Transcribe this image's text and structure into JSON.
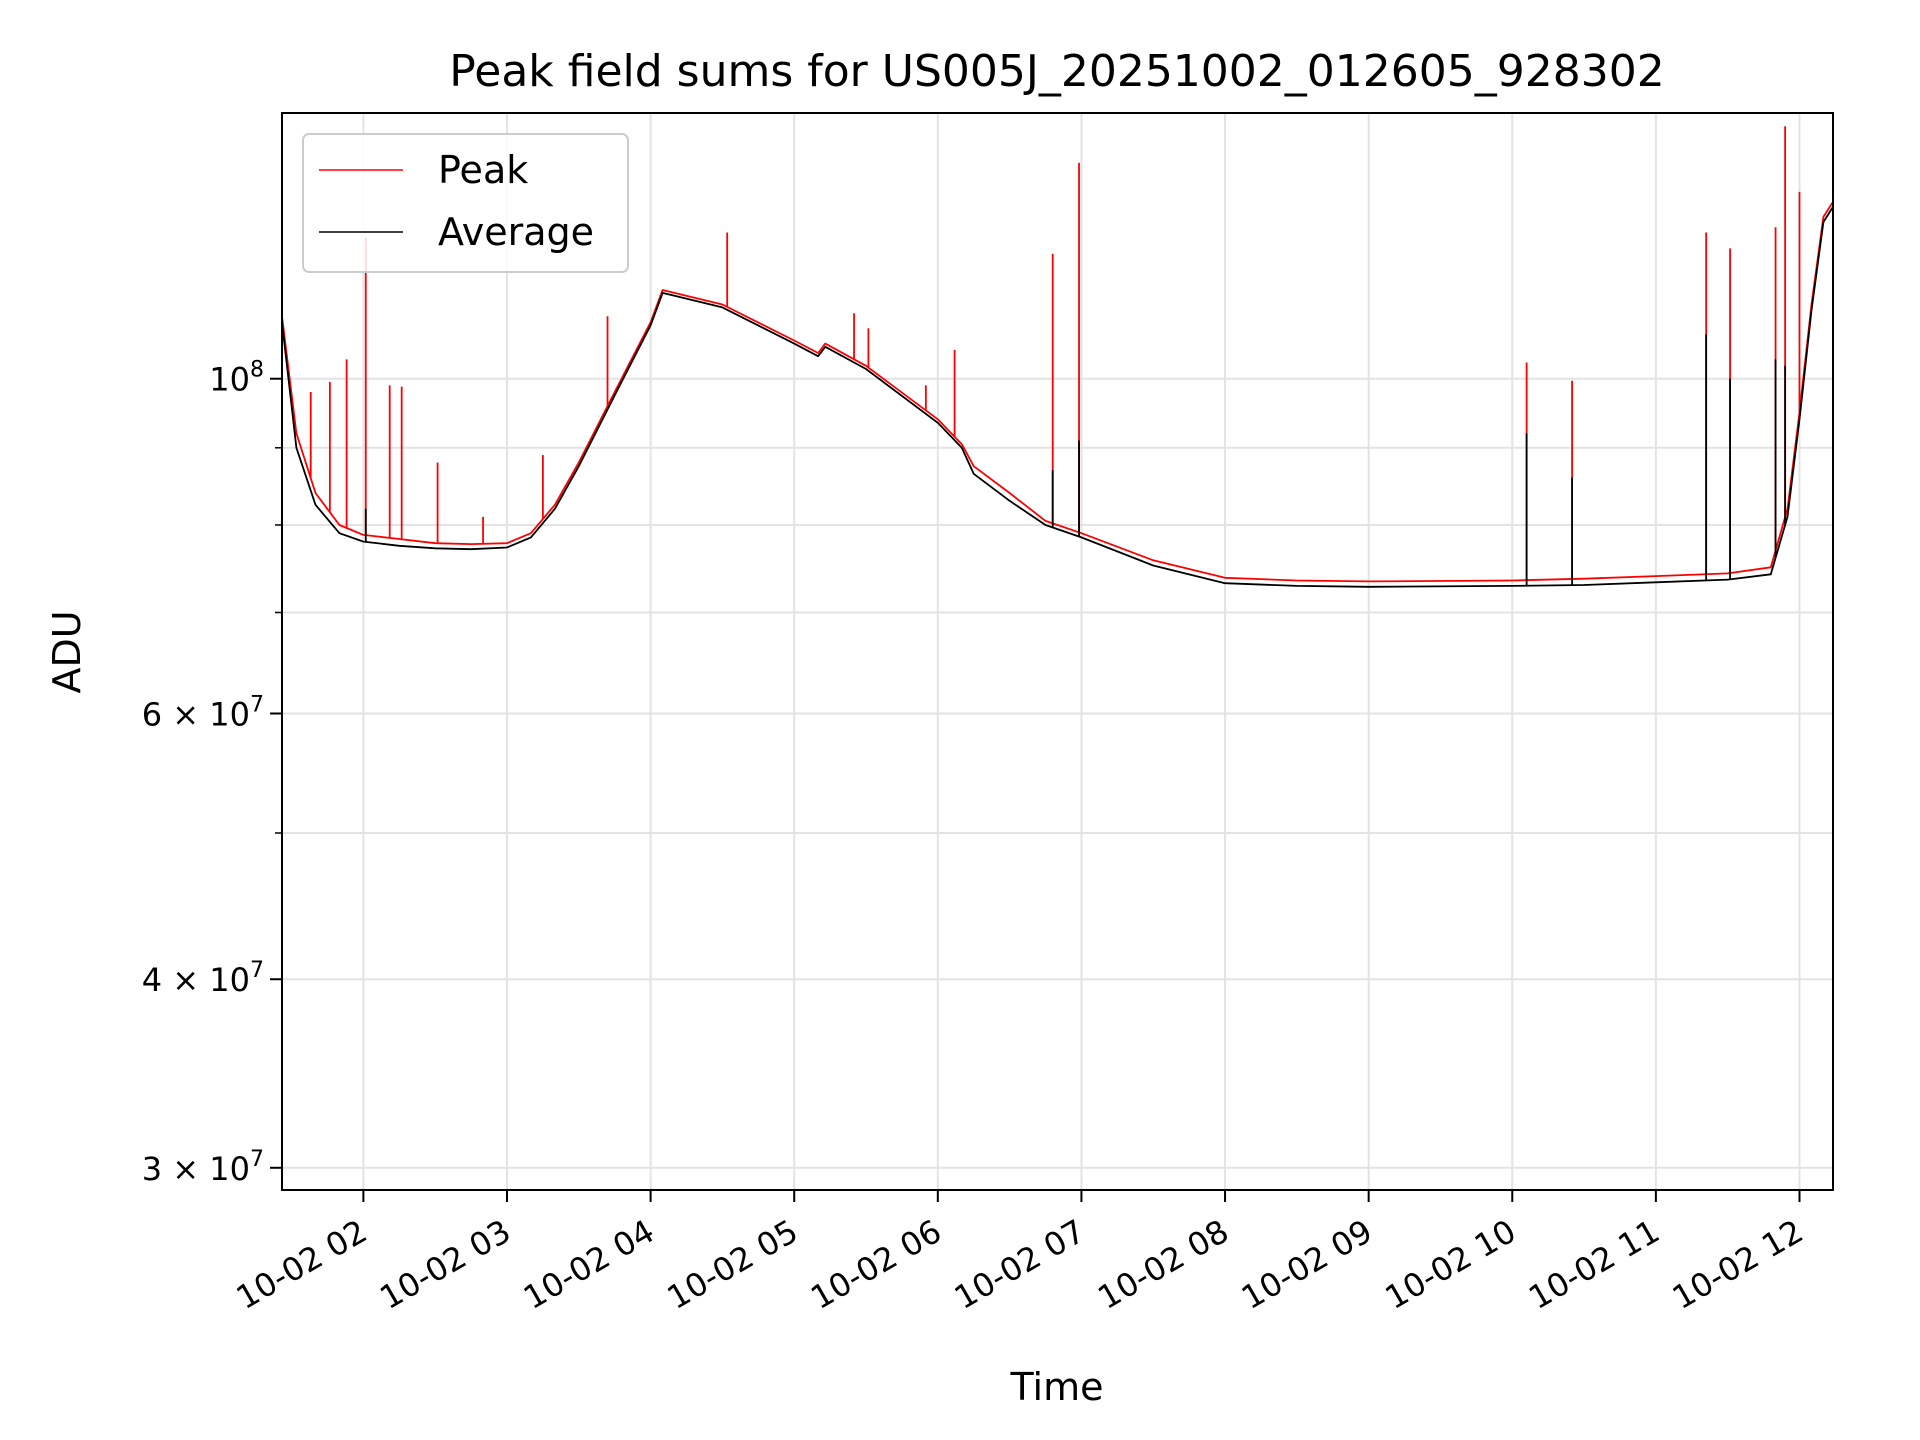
{
  "chart_data": {
    "type": "line",
    "title": "Peak field sums for US005J_20251002_012605_928302",
    "xlabel": "Time",
    "ylabel": "ADU",
    "x_axis_kind": "datetime",
    "x_range": [
      "2025-10-02 01:26",
      "2025-10-02 12:14"
    ],
    "y_scale": "log",
    "ylim": [
      29000000,
      150000000
    ],
    "grid": true,
    "legend_position": "top-left",
    "x_ticks": [
      {
        "value": "2025-10-02 02:00",
        "label": "10-02 02"
      },
      {
        "value": "2025-10-02 03:00",
        "label": "10-02 03"
      },
      {
        "value": "2025-10-02 04:00",
        "label": "10-02 04"
      },
      {
        "value": "2025-10-02 05:00",
        "label": "10-02 05"
      },
      {
        "value": "2025-10-02 06:00",
        "label": "10-02 06"
      },
      {
        "value": "2025-10-02 07:00",
        "label": "10-02 07"
      },
      {
        "value": "2025-10-02 08:00",
        "label": "10-02 08"
      },
      {
        "value": "2025-10-02 09:00",
        "label": "10-02 09"
      },
      {
        "value": "2025-10-02 10:00",
        "label": "10-02 10"
      },
      {
        "value": "2025-10-02 11:00",
        "label": "10-02 11"
      },
      {
        "value": "2025-10-02 12:00",
        "label": "10-02 12"
      }
    ],
    "y_major_ticks": [
      {
        "value": 100000000,
        "label_base": "10",
        "label_exp": "8"
      },
      {
        "value": 60000000,
        "label_base": "6 × 10",
        "label_exp": "7"
      },
      {
        "value": 40000000,
        "label_base": "4 × 10",
        "label_exp": "7"
      },
      {
        "value": 30000000,
        "label_base": "3 × 10",
        "label_exp": "7"
      }
    ],
    "y_minor_ticks": [
      50000000,
      70000000,
      80000000,
      90000000
    ],
    "series": [
      {
        "name": "Peak",
        "color": "#ff0000",
        "points": [
          [
            "2025-10-02 01:26",
            110000000
          ],
          [
            "2025-10-02 01:32",
            92000000
          ],
          [
            "2025-10-02 01:40",
            84000000
          ],
          [
            "2025-10-02 01:50",
            80000000
          ],
          [
            "2025-10-02 02:00",
            78800000
          ],
          [
            "2025-10-02 02:15",
            78300000
          ],
          [
            "2025-10-02 02:30",
            77800000
          ],
          [
            "2025-10-02 02:45",
            77700000
          ],
          [
            "2025-10-02 03:00",
            77800000
          ],
          [
            "2025-10-02 03:10",
            79000000
          ],
          [
            "2025-10-02 03:20",
            82500000
          ],
          [
            "2025-10-02 03:30",
            88000000
          ],
          [
            "2025-10-02 03:45",
            98000000
          ],
          [
            "2025-10-02 04:00",
            109000000
          ],
          [
            "2025-10-02 04:05",
            114500000
          ],
          [
            "2025-10-02 04:30",
            112000000
          ],
          [
            "2025-10-02 05:00",
            106000000
          ],
          [
            "2025-10-02 05:10",
            104000000
          ],
          [
            "2025-10-02 05:13",
            105500000
          ],
          [
            "2025-10-02 05:30",
            102000000
          ],
          [
            "2025-10-02 06:00",
            94000000
          ],
          [
            "2025-10-02 06:10",
            90500000
          ],
          [
            "2025-10-02 06:15",
            87500000
          ],
          [
            "2025-10-02 06:30",
            84000000
          ],
          [
            "2025-10-02 06:45",
            80500000
          ],
          [
            "2025-10-02 07:00",
            79000000
          ],
          [
            "2025-10-02 07:30",
            75800000
          ],
          [
            "2025-10-02 08:00",
            73800000
          ],
          [
            "2025-10-02 08:30",
            73500000
          ],
          [
            "2025-10-02 09:00",
            73400000
          ],
          [
            "2025-10-02 10:00",
            73500000
          ],
          [
            "2025-10-02 10:30",
            73700000
          ],
          [
            "2025-10-02 11:00",
            74000000
          ],
          [
            "2025-10-02 11:30",
            74300000
          ],
          [
            "2025-10-02 11:48",
            75000000
          ],
          [
            "2025-10-02 11:55",
            82000000
          ],
          [
            "2025-10-02 12:00",
            95000000
          ],
          [
            "2025-10-02 12:05",
            112000000
          ],
          [
            "2025-10-02 12:10",
            128000000
          ],
          [
            "2025-10-02 12:14",
            131000000
          ]
        ],
        "spikes": [
          [
            "2025-10-02 01:38",
            98000000
          ],
          [
            "2025-10-02 01:46",
            99500000
          ],
          [
            "2025-10-02 01:53",
            103000000
          ],
          [
            "2025-10-02 02:01",
            124000000
          ],
          [
            "2025-10-02 02:11",
            99000000
          ],
          [
            "2025-10-02 02:16",
            98800000
          ],
          [
            "2025-10-02 02:31",
            88000000
          ],
          [
            "2025-10-02 02:50",
            81000000
          ],
          [
            "2025-10-02 03:15",
            89000000
          ],
          [
            "2025-10-02 03:42",
            110000000
          ],
          [
            "2025-10-02 04:32",
            125000000
          ],
          [
            "2025-10-02 05:25",
            110500000
          ],
          [
            "2025-10-02 05:31",
            108000000
          ],
          [
            "2025-10-02 05:55",
            99000000
          ],
          [
            "2025-10-02 06:07",
            104500000
          ],
          [
            "2025-10-02 06:48",
            121000000
          ],
          [
            "2025-10-02 06:59",
            139000000
          ],
          [
            "2025-10-02 10:06",
            102500000
          ],
          [
            "2025-10-02 10:25",
            99700000
          ],
          [
            "2025-10-02 11:21",
            125000000
          ],
          [
            "2025-10-02 11:31",
            122000000
          ],
          [
            "2025-10-02 11:50",
            126000000
          ],
          [
            "2025-10-02 11:54",
            147000000
          ],
          [
            "2025-10-02 12:00",
            133000000
          ],
          [
            "2025-10-02 12:14",
            133000000
          ]
        ]
      },
      {
        "name": "Average",
        "color": "#000000",
        "points": [
          [
            "2025-10-02 01:26",
            109000000
          ],
          [
            "2025-10-02 01:32",
            90000000
          ],
          [
            "2025-10-02 01:40",
            82500000
          ],
          [
            "2025-10-02 01:50",
            79000000
          ],
          [
            "2025-10-02 02:00",
            78000000
          ],
          [
            "2025-10-02 02:15",
            77500000
          ],
          [
            "2025-10-02 02:30",
            77200000
          ],
          [
            "2025-10-02 02:45",
            77100000
          ],
          [
            "2025-10-02 03:00",
            77300000
          ],
          [
            "2025-10-02 03:10",
            78500000
          ],
          [
            "2025-10-02 03:20",
            82000000
          ],
          [
            "2025-10-02 03:30",
            87500000
          ],
          [
            "2025-10-02 03:45",
            97500000
          ],
          [
            "2025-10-02 04:00",
            108500000
          ],
          [
            "2025-10-02 04:05",
            114000000
          ],
          [
            "2025-10-02 04:30",
            111500000
          ],
          [
            "2025-10-02 05:00",
            105500000
          ],
          [
            "2025-10-02 05:10",
            103500000
          ],
          [
            "2025-10-02 05:13",
            105000000
          ],
          [
            "2025-10-02 05:30",
            101500000
          ],
          [
            "2025-10-02 06:00",
            93500000
          ],
          [
            "2025-10-02 06:10",
            90000000
          ],
          [
            "2025-10-02 06:15",
            86500000
          ],
          [
            "2025-10-02 06:30",
            83000000
          ],
          [
            "2025-10-02 06:45",
            80000000
          ],
          [
            "2025-10-02 07:00",
            78500000
          ],
          [
            "2025-10-02 07:30",
            75200000
          ],
          [
            "2025-10-02 08:00",
            73200000
          ],
          [
            "2025-10-02 08:30",
            72900000
          ],
          [
            "2025-10-02 09:00",
            72800000
          ],
          [
            "2025-10-02 10:00",
            72900000
          ],
          [
            "2025-10-02 10:30",
            73000000
          ],
          [
            "2025-10-02 11:00",
            73300000
          ],
          [
            "2025-10-02 11:30",
            73600000
          ],
          [
            "2025-10-02 11:48",
            74200000
          ],
          [
            "2025-10-02 11:55",
            81000000
          ],
          [
            "2025-10-02 12:00",
            94000000
          ],
          [
            "2025-10-02 12:05",
            111000000
          ],
          [
            "2025-10-02 12:10",
            127000000
          ],
          [
            "2025-10-02 12:14",
            130000000
          ]
        ],
        "spikes": [
          [
            "2025-10-02 02:01",
            82000000
          ],
          [
            "2025-10-02 06:48",
            87000000
          ],
          [
            "2025-10-02 06:59",
            91000000
          ],
          [
            "2025-10-02 10:06",
            92000000
          ],
          [
            "2025-10-02 10:25",
            86000000
          ],
          [
            "2025-10-02 11:21",
            107000000
          ],
          [
            "2025-10-02 11:31",
            100000000
          ],
          [
            "2025-10-02 11:50",
            103000000
          ],
          [
            "2025-10-02 11:54",
            102000000
          ]
        ]
      }
    ]
  }
}
